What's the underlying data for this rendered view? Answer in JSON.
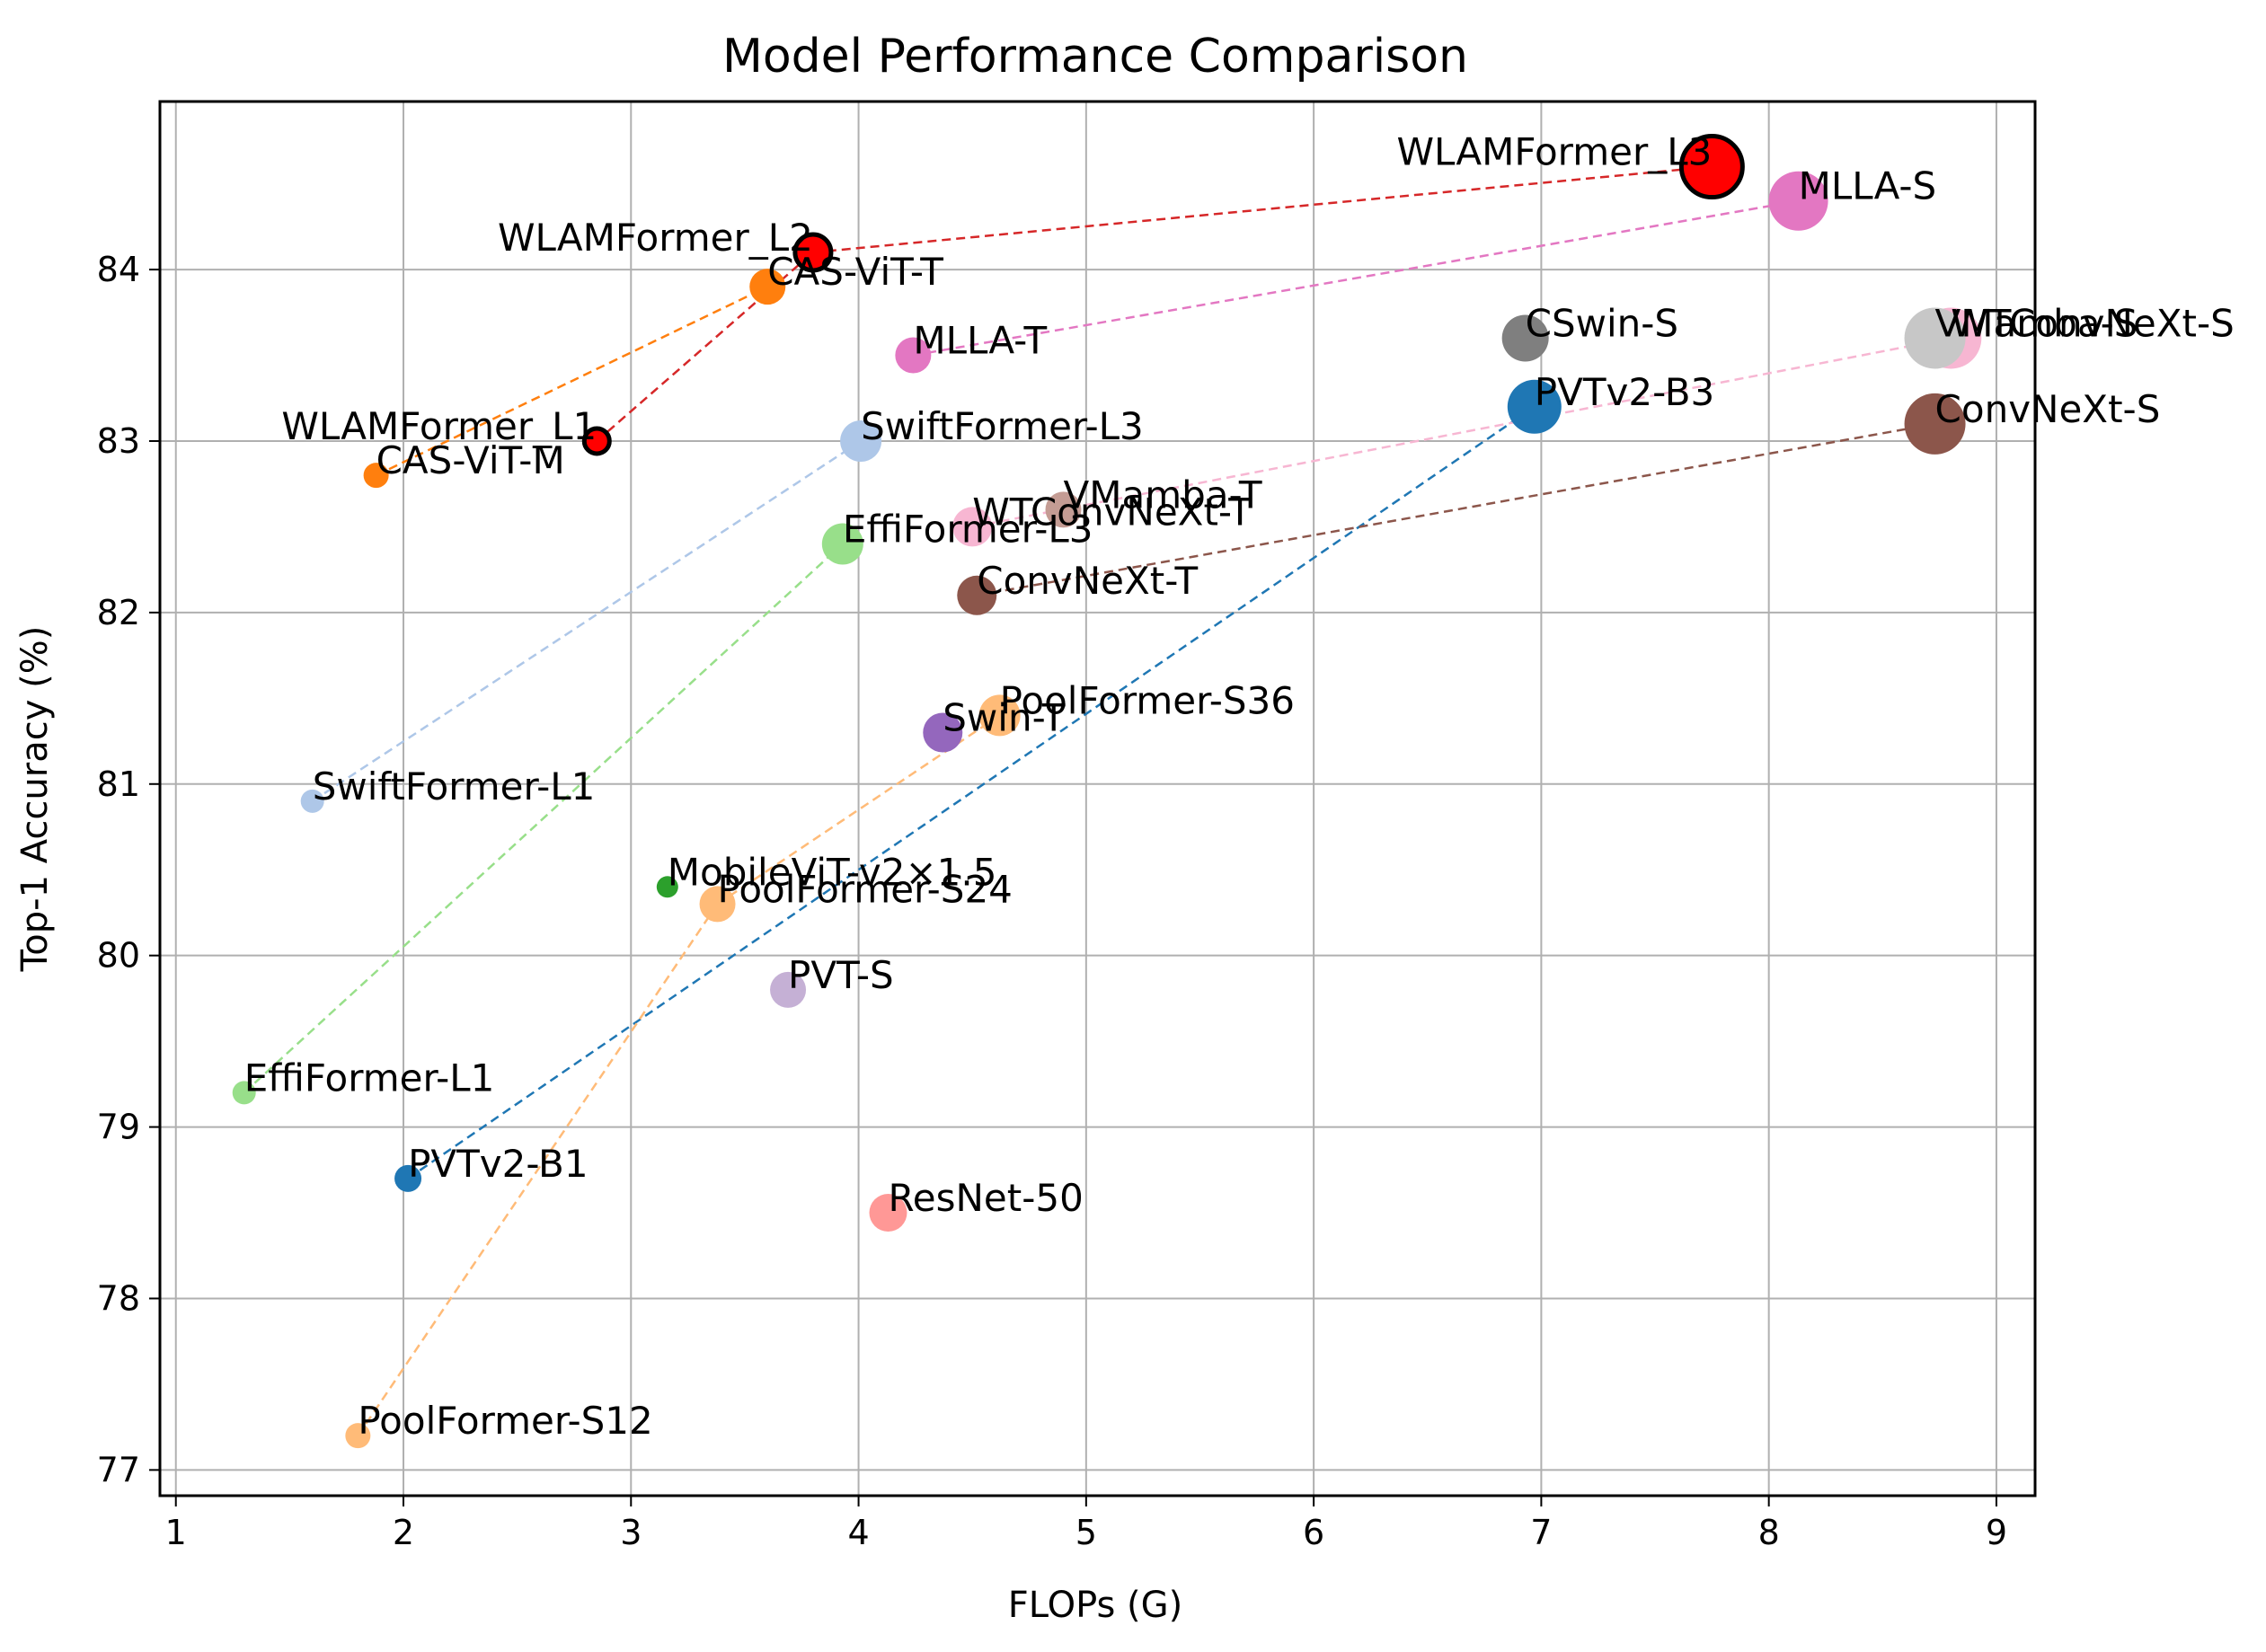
{
  "chart_data": {
    "type": "scatter",
    "title": "Model Performance Comparison",
    "xlabel": "FLOPs (G)",
    "ylabel": "Top-1 Accuracy (%)",
    "xlim": [
      0.93,
      9.17
    ],
    "ylim": [
      76.85,
      84.98
    ],
    "xticks": [
      1,
      2,
      3,
      4,
      5,
      6,
      7,
      8,
      9
    ],
    "yticks": [
      77,
      78,
      79,
      80,
      81,
      82,
      83,
      84
    ],
    "grid": true,
    "points": [
      {
        "name": "WLAMFormer_L3",
        "x": 7.75,
        "y": 84.6,
        "size": 34,
        "color": "#ff0000",
        "edge": true,
        "label_align": "end"
      },
      {
        "name": "MLLA-S",
        "x": 8.13,
        "y": 84.4,
        "size": 33,
        "color": "#e377c2",
        "label_align": "start"
      },
      {
        "name": "WLAMFormer_L2",
        "x": 3.8,
        "y": 84.1,
        "size": 20,
        "color": "#ff0000",
        "edge": true,
        "label_align": "end"
      },
      {
        "name": "CAS-ViT-T",
        "x": 3.6,
        "y": 83.9,
        "size": 20,
        "color": "#ff7f0e",
        "label_align": "start"
      },
      {
        "name": "CSwin-S",
        "x": 6.93,
        "y": 83.6,
        "size": 26,
        "color": "#7f7f7f",
        "label_align": "start"
      },
      {
        "name": "WTConvNeXt-S",
        "x": 8.8,
        "y": 83.6,
        "size": 34,
        "color": "#f7b6d2",
        "label_align": "start"
      },
      {
        "name": "VMamba-S",
        "x": 8.73,
        "y": 83.6,
        "size": 34,
        "color": "#c7c7c7",
        "label_align": "start"
      },
      {
        "name": "MLLA-T",
        "x": 4.24,
        "y": 83.5,
        "size": 20,
        "color": "#e377c2",
        "label_align": "start"
      },
      {
        "name": "PVTv2-B3",
        "x": 6.97,
        "y": 83.2,
        "size": 30,
        "color": "#1f77b4",
        "label_align": "start"
      },
      {
        "name": "ConvNeXt-S",
        "x": 8.73,
        "y": 83.1,
        "size": 34,
        "color": "#8c564b",
        "label_align": "start"
      },
      {
        "name": "WLAMFormer_L1",
        "x": 2.85,
        "y": 83.0,
        "size": 14,
        "color": "#ff0000",
        "edge": true,
        "label_align": "end"
      },
      {
        "name": "SwiftFormer-L3",
        "x": 4.01,
        "y": 83.0,
        "size": 23,
        "color": "#aec7e8",
        "label_align": "start"
      },
      {
        "name": "CAS-ViT-M",
        "x": 1.88,
        "y": 82.8,
        "size": 14,
        "color": "#ff7f0e",
        "label_align": "start"
      },
      {
        "name": "WTConvNeXt-T",
        "x": 4.5,
        "y": 82.5,
        "size": 22,
        "color": "#f7b6d2",
        "label_align": "start"
      },
      {
        "name": "VMamba-T",
        "x": 4.9,
        "y": 82.6,
        "size": 20,
        "color": "#c49c94",
        "label_align": "start"
      },
      {
        "name": "EffiFormer-L3",
        "x": 3.93,
        "y": 82.4,
        "size": 23,
        "color": "#98df8a",
        "label_align": "start"
      },
      {
        "name": "ConvNeXt-T",
        "x": 4.52,
        "y": 82.1,
        "size": 22,
        "color": "#8c564b",
        "label_align": "start"
      },
      {
        "name": "PoolFormer-S36",
        "x": 4.62,
        "y": 81.4,
        "size": 23,
        "color": "#ffbb78",
        "label_align": "start"
      },
      {
        "name": "Swin-T",
        "x": 4.37,
        "y": 81.3,
        "size": 22,
        "color": "#9467bd",
        "label_align": "start"
      },
      {
        "name": "SwiftFormer-L1",
        "x": 1.6,
        "y": 80.9,
        "size": 13,
        "color": "#aec7e8",
        "label_align": "start"
      },
      {
        "name": "MobileViT-v2×1.5",
        "x": 3.16,
        "y": 80.4,
        "size": 12,
        "color": "#2ca02c",
        "label_align": "start"
      },
      {
        "name": "PoolFormer-S24",
        "x": 3.38,
        "y": 80.3,
        "size": 20,
        "color": "#ffbb78",
        "label_align": "start"
      },
      {
        "name": "PVT-S",
        "x": 3.69,
        "y": 79.8,
        "size": 20,
        "color": "#c5b0d5",
        "label_align": "start"
      },
      {
        "name": "EffiFormer-L1",
        "x": 1.3,
        "y": 79.2,
        "size": 13,
        "color": "#98df8a",
        "label_align": "start"
      },
      {
        "name": "PVTv2-B1",
        "x": 2.02,
        "y": 78.7,
        "size": 15,
        "color": "#1f77b4",
        "label_align": "start"
      },
      {
        "name": "ResNet-50",
        "x": 4.13,
        "y": 78.5,
        "size": 21,
        "color": "#ff9896",
        "label_align": "start"
      },
      {
        "name": "PoolFormer-S12",
        "x": 1.8,
        "y": 77.2,
        "size": 14,
        "color": "#ffbb78",
        "label_align": "start"
      }
    ],
    "connections": [
      {
        "from": "WLAMFormer_L1",
        "to": "WLAMFormer_L2",
        "color": "#d62728"
      },
      {
        "from": "WLAMFormer_L2",
        "to": "WLAMFormer_L3",
        "color": "#d62728"
      },
      {
        "from": "CAS-ViT-M",
        "to": "CAS-ViT-T",
        "color": "#ff7f0e"
      },
      {
        "from": "MLLA-T",
        "to": "MLLA-S",
        "color": "#e377c2"
      },
      {
        "from": "SwiftFormer-L1",
        "to": "SwiftFormer-L3",
        "color": "#aec7e8"
      },
      {
        "from": "EffiFormer-L1",
        "to": "EffiFormer-L3",
        "color": "#98df8a"
      },
      {
        "from": "PVTv2-B1",
        "to": "PVTv2-B3",
        "color": "#1f77b4"
      },
      {
        "from": "PoolFormer-S12",
        "to": "PoolFormer-S24",
        "color": "#ffbb78"
      },
      {
        "from": "PoolFormer-S24",
        "to": "PoolFormer-S36",
        "color": "#ffbb78"
      },
      {
        "from": "WTConvNeXt-T",
        "to": "WTConvNeXt-S",
        "color": "#f7b6d2"
      },
      {
        "from": "ConvNeXt-T",
        "to": "ConvNeXt-S",
        "color": "#8c564b"
      }
    ]
  }
}
